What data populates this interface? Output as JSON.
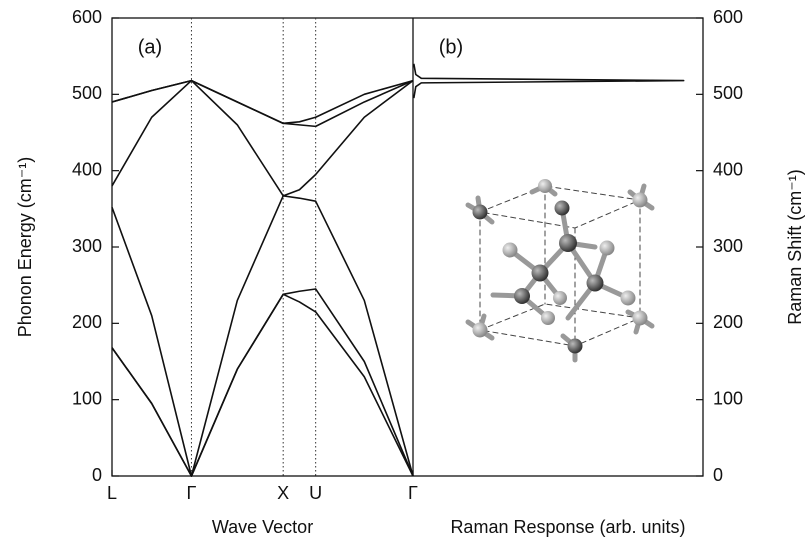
{
  "chart_data": [
    {
      "type": "line",
      "label": "(a)",
      "xlabel": "Wave Vector",
      "ylabel": "Phonon Energy (cm⁻¹)",
      "yaxis": "left",
      "xlim": [
        0,
        3.281
      ],
      "xticks": [
        {
          "value": 0,
          "label": "L"
        },
        {
          "value": 0.866,
          "label": "Γ"
        },
        {
          "value": 1.866,
          "label": "X"
        },
        {
          "value": 2.22,
          "label": "U"
        },
        {
          "value": 3.281,
          "label": "Γ"
        }
      ],
      "ylim": [
        0,
        600
      ],
      "yticks": [
        0,
        100,
        200,
        300,
        400,
        500,
        600
      ],
      "series": [
        {
          "color": "#111111",
          "x": [
            0,
            0.433,
            0.866,
            1.366,
            1.866,
            2.043,
            2.22,
            2.75,
            3.281
          ],
          "values": [
            168,
            95,
            0,
            140,
            238,
            242,
            245,
            150,
            0
          ]
        },
        {
          "color": "#111111",
          "x": [
            0,
            0.433,
            0.866,
            1.366,
            1.866,
            2.043,
            2.22,
            2.75,
            3.281
          ],
          "values": [
            168,
            95,
            0,
            140,
            238,
            228,
            215,
            130,
            0
          ]
        },
        {
          "color": "#111111",
          "x": [
            0,
            0.433,
            0.866,
            1.366,
            1.866,
            2.043,
            2.22,
            2.75,
            3.281
          ],
          "values": [
            352,
            210,
            0,
            230,
            367,
            364,
            360,
            230,
            0
          ]
        },
        {
          "color": "#111111",
          "x": [
            0,
            0.433,
            0.866,
            1.366,
            1.866,
            2.043,
            2.22,
            2.75,
            3.281
          ],
          "values": [
            380,
            470,
            518,
            460,
            367,
            375,
            395,
            470,
            518
          ]
        },
        {
          "color": "#111111",
          "x": [
            0,
            0.433,
            0.866,
            1.366,
            1.866,
            2.043,
            2.22,
            2.75,
            3.281
          ],
          "values": [
            490,
            505,
            518,
            490,
            462,
            460,
            458,
            490,
            518
          ]
        },
        {
          "color": "#111111",
          "x": [
            0,
            0.433,
            0.866,
            1.366,
            1.866,
            2.043,
            2.22,
            2.75,
            3.281
          ],
          "values": [
            490,
            505,
            518,
            490,
            462,
            464,
            470,
            500,
            518
          ]
        }
      ]
    },
    {
      "type": "line",
      "label": "(b)",
      "xlabel": "Raman Response (arb. units)",
      "ylabel": "Raman Shift (cm⁻¹)",
      "yaxis": "right",
      "xlim": [
        0,
        1.05
      ],
      "ylim": [
        0,
        600
      ],
      "yticks": [
        0,
        100,
        200,
        300,
        400,
        500,
        600
      ],
      "series": [
        {
          "color": "#111111",
          "x": [
            0.003,
            0.01,
            0.03,
            0.98,
            0.03,
            0.01,
            0.003
          ],
          "values": [
            495,
            510,
            515,
            518,
            521,
            526,
            540
          ]
        }
      ]
    }
  ]
}
